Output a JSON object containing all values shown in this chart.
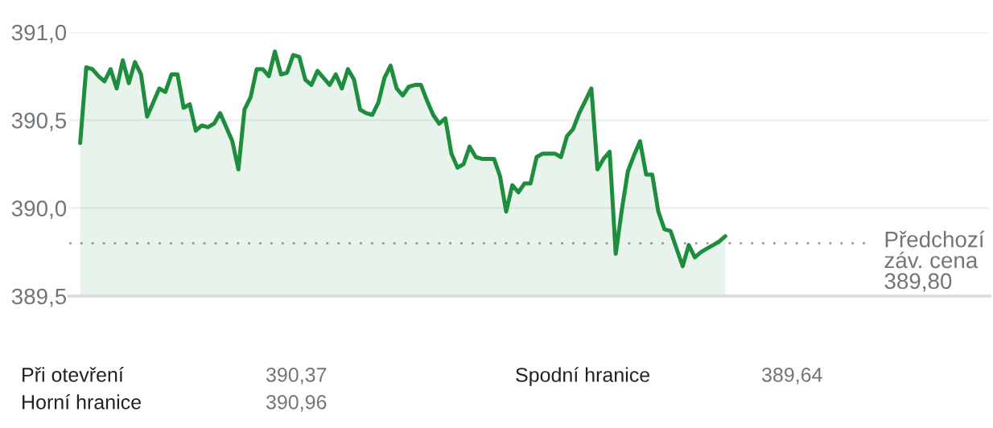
{
  "chart_data": {
    "type": "area",
    "color": "#1e8e3e",
    "categories": [
      null,
      null,
      null,
      null,
      null,
      null,
      null,
      null,
      null,
      null,
      null,
      null,
      null,
      null,
      null,
      null,
      null,
      null,
      null,
      null,
      null,
      null,
      null,
      null,
      null,
      null,
      null,
      null,
      null,
      null,
      null,
      null,
      null,
      null,
      null,
      null,
      null,
      null,
      null,
      null,
      null,
      null,
      null,
      null,
      null,
      null,
      null,
      null,
      null,
      null,
      null,
      null,
      null,
      null,
      null,
      null,
      null,
      null,
      null,
      null,
      null,
      null,
      null,
      null,
      null,
      null,
      null,
      null,
      null,
      null,
      null,
      null,
      null,
      null,
      null,
      null,
      null,
      null,
      null,
      null,
      null,
      null,
      null,
      null,
      null,
      null,
      null,
      null,
      null,
      null,
      null,
      null,
      null,
      null,
      null,
      null,
      null,
      null,
      null,
      null,
      null,
      null,
      null,
      null,
      null,
      null,
      null
    ],
    "values": [
      390.37,
      390.8,
      390.79,
      390.75,
      390.72,
      390.79,
      390.68,
      390.84,
      390.71,
      390.83,
      390.76,
      390.52,
      390.6,
      390.68,
      390.66,
      390.76,
      390.76,
      390.57,
      390.59,
      390.44,
      390.47,
      390.46,
      390.48,
      390.54,
      390.46,
      390.38,
      390.22,
      390.56,
      390.63,
      390.79,
      390.79,
      390.75,
      390.89,
      390.76,
      390.77,
      390.87,
      390.86,
      390.73,
      390.7,
      390.78,
      390.74,
      390.7,
      390.76,
      390.68,
      390.79,
      390.73,
      390.56,
      390.54,
      390.53,
      390.6,
      390.74,
      390.81,
      390.68,
      390.64,
      390.69,
      390.7,
      390.7,
      390.61,
      390.53,
      390.48,
      390.51,
      390.31,
      390.23,
      390.25,
      390.35,
      390.29,
      390.28,
      390.28,
      390.28,
      390.18,
      389.98,
      390.13,
      390.09,
      390.14,
      390.14,
      390.29,
      390.31,
      390.31,
      390.31,
      390.29,
      390.41,
      390.45,
      390.54,
      390.61,
      390.68,
      390.22,
      390.28,
      390.32,
      389.74,
      389.99,
      390.21,
      390.3,
      390.38,
      390.19,
      390.19,
      389.98,
      389.88,
      389.87,
      389.77,
      389.67,
      389.79,
      389.72,
      389.75,
      389.77,
      389.79,
      389.81,
      389.84
    ],
    "ylim": [
      389.5,
      391.0
    ],
    "yticks": [
      {
        "value": 389.5,
        "label": "389,5"
      },
      {
        "value": 390.0,
        "label": "390,0"
      },
      {
        "value": 390.5,
        "label": "390,5"
      },
      {
        "value": 391.0,
        "label": "391,0"
      }
    ],
    "grid": "y",
    "tick_labels": "y",
    "ref_lines": [
      {
        "axis": "y",
        "value": 389.8,
        "label": "Předchozí\nzáv. cena\n389,80",
        "color": "#9aa0a6",
        "line_style": "dotted"
      }
    ],
    "annotations": [
      "Při otevření",
      "390,37",
      "Horní hranice",
      "390,96",
      "Spodní hranice",
      "389,64"
    ]
  }
}
